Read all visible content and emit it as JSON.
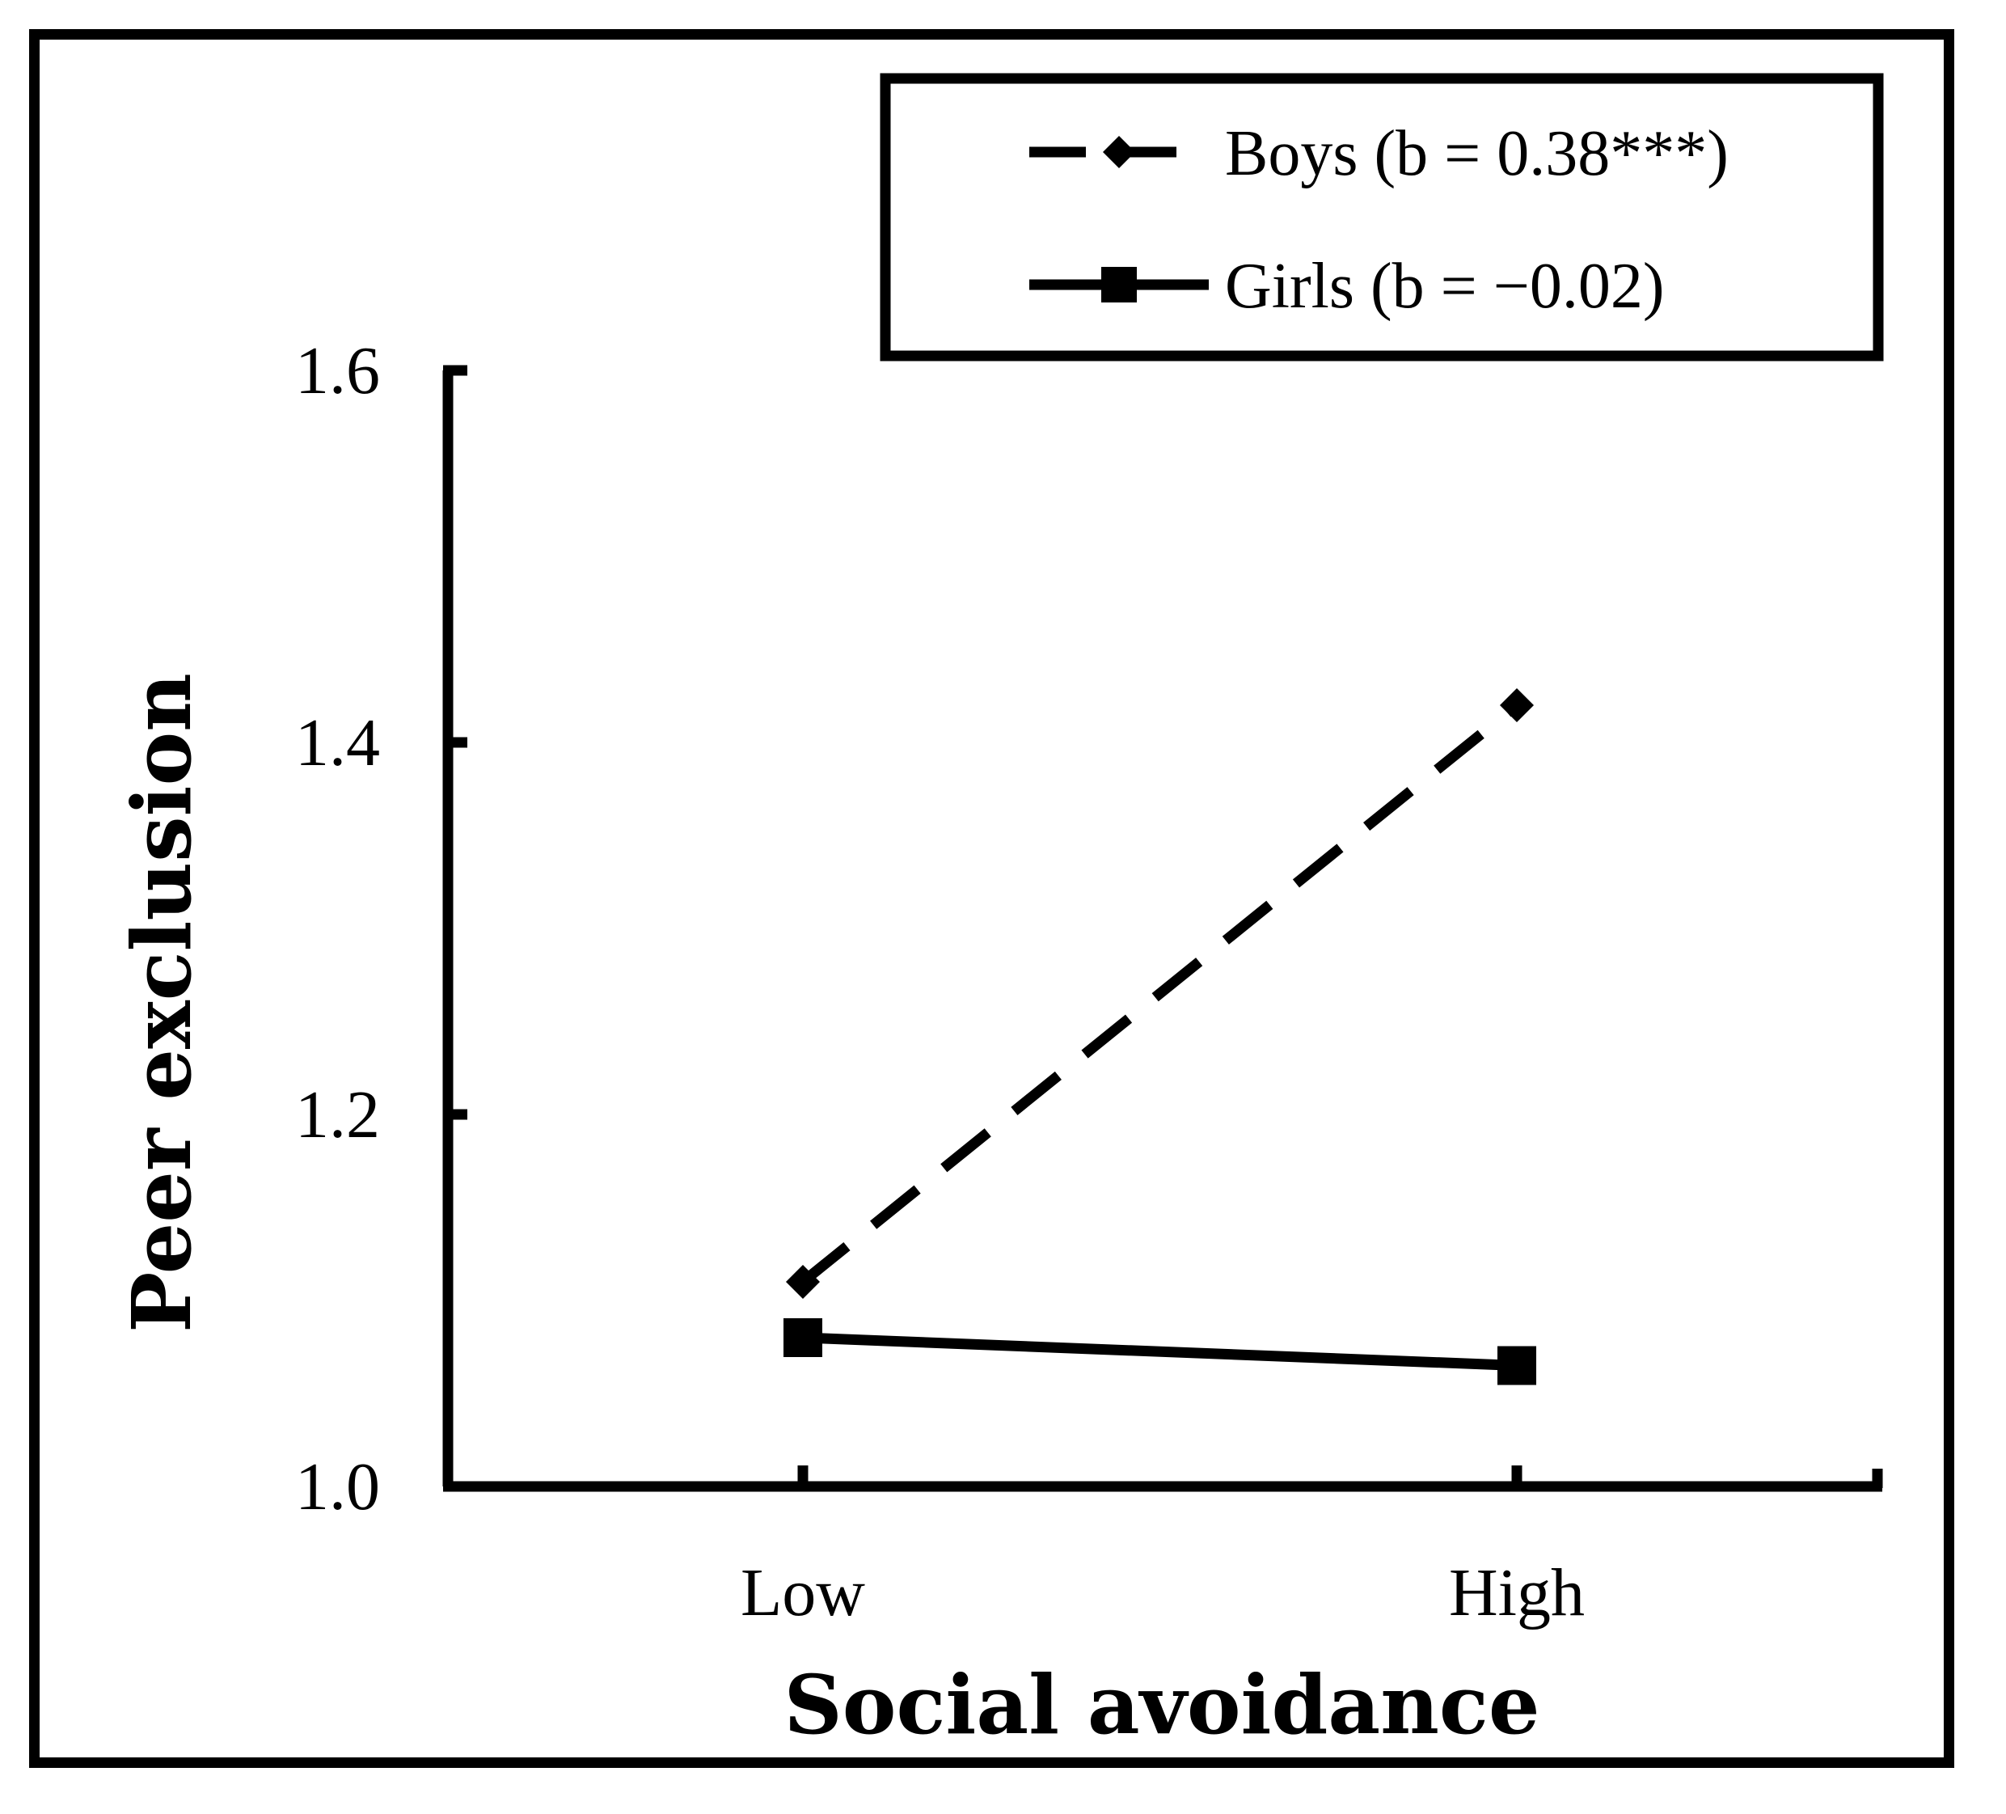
{
  "chart_data": {
    "type": "line",
    "title": "",
    "xlabel": "Social avoidance",
    "ylabel": "Peer exclusion",
    "categories": [
      "Low",
      "High"
    ],
    "ylim": [
      1.0,
      1.6
    ],
    "yticks": [
      "1.0",
      "1.2",
      "1.4",
      "1.6"
    ],
    "ytick_values": [
      1.0,
      1.2,
      1.4,
      1.6
    ],
    "legend_position": "top-right",
    "series": [
      {
        "name": "Boys (b = 0.38***)",
        "values": [
          1.11,
          1.42
        ],
        "line_style": "dashed",
        "marker": "diamond",
        "color": "#000000"
      },
      {
        "name": "Girls (b = −0.02)",
        "values": [
          1.08,
          1.065
        ],
        "line_style": "solid",
        "marker": "square",
        "color": "#000000"
      }
    ]
  }
}
